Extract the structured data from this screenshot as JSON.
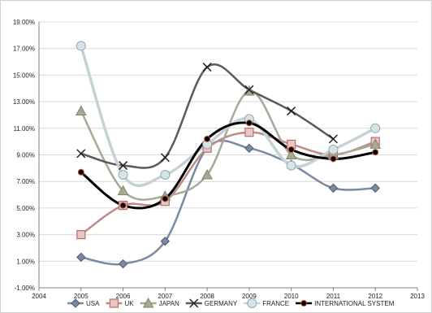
{
  "chart_data": {
    "type": "line",
    "x": [
      2005,
      2006,
      2007,
      2008,
      2009,
      2010,
      2011,
      2012
    ],
    "xlim": [
      2004,
      2013
    ],
    "xticks": [
      2004,
      2005,
      2006,
      2007,
      2008,
      2009,
      2010,
      2011,
      2012,
      2013
    ],
    "xtick_labels": [
      "2004",
      "2005",
      "2006",
      "2007",
      "2008",
      "2009",
      "2010",
      "2011",
      "2012",
      "2013"
    ],
    "ylim": [
      -1.0,
      19.0
    ],
    "yticks": [
      -1.0,
      1.0,
      3.0,
      5.0,
      7.0,
      9.0,
      11.0,
      13.0,
      15.0,
      17.0,
      19.0
    ],
    "ytick_labels": [
      "-1.00%",
      "1.00%",
      "3.00%",
      "5.00%",
      "7.00%",
      "9.00%",
      "11.00%",
      "13.00%",
      "15.00%",
      "17.00%",
      "19.00%"
    ],
    "grid": true,
    "legend": "bottom",
    "series": [
      {
        "name": "USA",
        "color": "#7a8aa0",
        "marker": "diamond",
        "values": [
          1.3,
          0.8,
          2.5,
          9.5,
          9.5,
          8.3,
          6.5,
          6.5
        ]
      },
      {
        "name": "UK",
        "color": "#c08a86",
        "marker": "square",
        "values": [
          3.0,
          5.2,
          5.5,
          9.5,
          10.7,
          9.8,
          9.0,
          10.0
        ]
      },
      {
        "name": "JAPAN",
        "color": "#a4aa94",
        "marker": "triangle",
        "values": [
          12.3,
          6.3,
          5.9,
          7.5,
          13.8,
          9.0,
          9.0,
          9.8
        ]
      },
      {
        "name": "GERMANY",
        "color": "#5a5a5a",
        "marker": "x",
        "values": [
          9.1,
          8.2,
          8.8,
          15.6,
          13.9,
          12.3,
          10.2,
          null
        ]
      },
      {
        "name": "FRANCE",
        "color": "#c4d2d6",
        "marker": "circle",
        "values": [
          17.2,
          7.5,
          7.5,
          9.8,
          11.7,
          8.2,
          9.4,
          11.0
        ]
      },
      {
        "name": "INTERNATIONAL SYSTEM",
        "color": "#000000",
        "marker": "dot",
        "values": [
          7.7,
          5.2,
          5.7,
          10.2,
          11.4,
          9.4,
          8.7,
          9.2
        ]
      }
    ]
  }
}
